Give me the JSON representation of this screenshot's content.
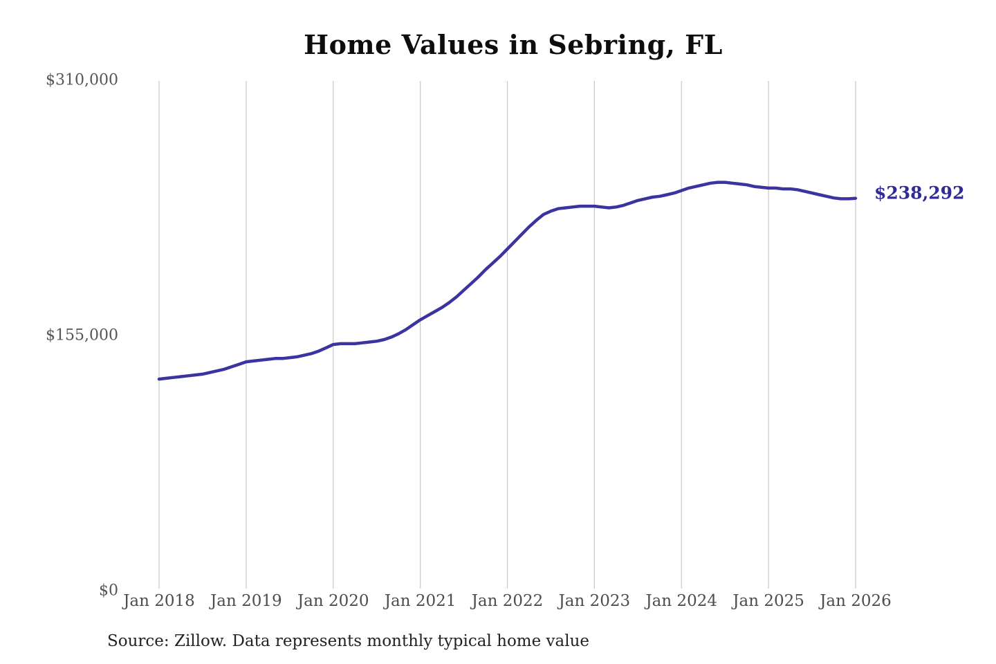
{
  "chart_data": {
    "type": "line",
    "title": "Home Values in Sebring, FL",
    "xlabel": "",
    "ylabel": "",
    "ylim": [
      0,
      310000
    ],
    "grid": "vertical-only",
    "legend": "none",
    "y_ticks": [
      {
        "value": 0,
        "label": "$0"
      },
      {
        "value": 155000,
        "label": "$155,000"
      },
      {
        "value": 310000,
        "label": "$310,000"
      }
    ],
    "x_tick_labels": [
      "Jan 2018",
      "Jan 2019",
      "Jan 2020",
      "Jan 2021",
      "Jan 2022",
      "Jan 2023",
      "Jan 2024",
      "Jan 2025",
      "Jan 2026"
    ],
    "series": [
      {
        "name": "Typical home value",
        "interval": "monthly",
        "start": "Jan 2018",
        "end": "Jan 2026",
        "values": [
          128500,
          129000,
          129500,
          130000,
          130500,
          131000,
          131500,
          132500,
          133500,
          134500,
          136000,
          137500,
          139000,
          139500,
          140000,
          140500,
          141000,
          141000,
          141500,
          142000,
          143000,
          144000,
          145500,
          147500,
          149500,
          150000,
          150000,
          150000,
          150500,
          151000,
          151500,
          152500,
          154000,
          156000,
          158500,
          161500,
          164500,
          167000,
          169500,
          172000,
          175000,
          178500,
          182500,
          186500,
          190500,
          195000,
          199000,
          203000,
          207500,
          212000,
          216500,
          221000,
          225000,
          228500,
          230500,
          232000,
          232500,
          233000,
          233500,
          233500,
          233500,
          233000,
          232500,
          233000,
          234000,
          235500,
          237000,
          238000,
          239000,
          239500,
          240500,
          241500,
          243000,
          244500,
          245500,
          246500,
          247500,
          248000,
          248000,
          247500,
          247000,
          246500,
          245500,
          245000,
          244500,
          244500,
          244000,
          244000,
          243500,
          242500,
          241500,
          240500,
          239500,
          238500,
          238000,
          238000,
          238292
        ]
      }
    ],
    "end_value": 238292,
    "end_value_label": "$238,292",
    "source": "Source: Zillow. Data represents monthly typical home value",
    "colors": {
      "line": "#3b34a0",
      "end_label_text": "#2f2a96",
      "gridline": "#c9c9c9",
      "axis_text": "#555555",
      "title_text": "#0d0d0d",
      "background": "#ffffff"
    }
  }
}
